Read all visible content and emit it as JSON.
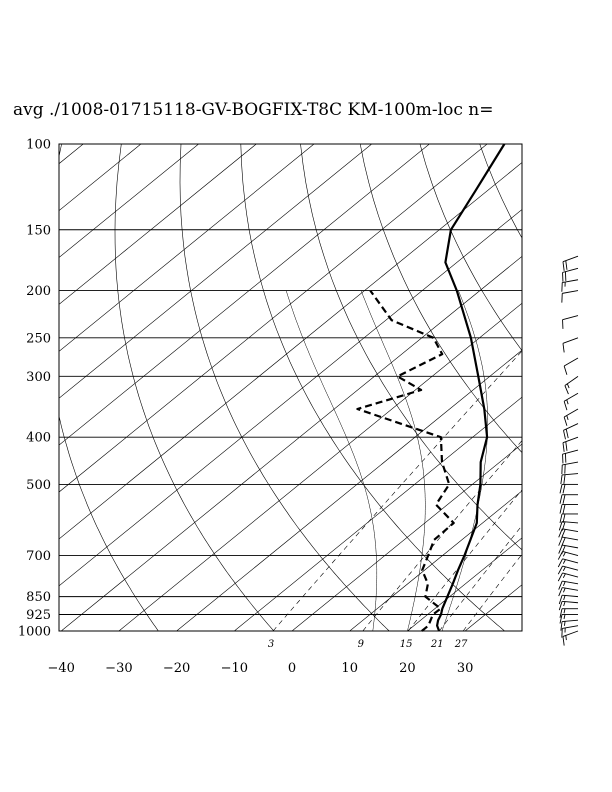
{
  "chart_data": {
    "type": "line",
    "subtype": "skew-T log-P sounding",
    "title": "avg ./1008-01715118-GV-BOGFIX-T8C KM-100m-loc n=",
    "xlabel": "",
    "ylabel": "",
    "y_scale": "log",
    "y_reversed": true,
    "xlim": [
      -40,
      40
    ],
    "ylim": [
      1000,
      100
    ],
    "pressure_levels": [
      100,
      150,
      200,
      250,
      300,
      400,
      500,
      700,
      850,
      925,
      1000
    ],
    "pressure_labels": [
      "100",
      "150",
      "200",
      "250",
      "300",
      "400",
      "500",
      "700",
      "850",
      "925",
      "1000"
    ],
    "temperature_ticks": [
      -40,
      -30,
      -20,
      -10,
      0,
      10,
      20,
      30
    ],
    "temperature_tick_labels": [
      "−40",
      "−30",
      "−20",
      "−10",
      "0",
      "10",
      "20",
      "30"
    ],
    "mixing_ratio_labels": [
      {
        "text": "3",
        "value": 3
      },
      {
        "text": "9",
        "value": 9
      },
      {
        "text": "15",
        "value": 15
      },
      {
        "text": "21",
        "value": 21
      },
      {
        "text": "27",
        "value": 27
      }
    ],
    "series": [
      {
        "style": "solid",
        "points": [
          [
            1000,
            25.5
          ],
          [
            975,
            24.0
          ],
          [
            950,
            23.0
          ],
          [
            925,
            22.3
          ],
          [
            900,
            21.3
          ],
          [
            850,
            19.6
          ],
          [
            800,
            17.8
          ],
          [
            750,
            15.8
          ],
          [
            700,
            13.8
          ],
          [
            650,
            11.5
          ],
          [
            600,
            9.0
          ],
          [
            550,
            5.2
          ],
          [
            500,
            1.4
          ],
          [
            450,
            -3.3
          ],
          [
            400,
            -7.5
          ],
          [
            350,
            -14.0
          ],
          [
            300,
            -22.0
          ],
          [
            250,
            -31.5
          ],
          [
            200,
            -44.0
          ],
          [
            175,
            -52.0
          ],
          [
            150,
            -58.0
          ],
          [
            125,
            -62.0
          ],
          [
            100,
            -67.0
          ]
        ]
      },
      {
        "style": "dashed",
        "points": [
          [
            1000,
            22.5
          ],
          [
            975,
            22.5
          ],
          [
            950,
            21.7
          ],
          [
            925,
            20.9
          ],
          [
            900,
            21.0
          ],
          [
            850,
            15.8
          ],
          [
            800,
            13.5
          ],
          [
            750,
            9.6
          ],
          [
            700,
            7.5
          ],
          [
            650,
            5.2
          ],
          [
            600,
            5.0
          ],
          [
            550,
            -2.0
          ],
          [
            500,
            -4.0
          ],
          [
            450,
            -10.0
          ],
          [
            400,
            -15.5
          ],
          [
            350,
            -36.0
          ],
          [
            320,
            -29.0
          ],
          [
            300,
            -36.0
          ],
          [
            270,
            -33.0
          ],
          [
            250,
            -38.0
          ],
          [
            230,
            -49.0
          ],
          [
            200,
            -59.0
          ]
        ]
      }
    ],
    "wind_barbs": {
      "levels": [
        1000,
        975,
        950,
        925,
        900,
        875,
        850,
        825,
        800,
        775,
        750,
        725,
        700,
        675,
        650,
        625,
        600,
        575,
        550,
        525,
        500,
        475,
        450,
        425,
        400,
        375,
        350,
        325,
        300,
        275,
        250,
        225,
        200,
        190,
        180,
        170
      ],
      "direction_deg": [
        250,
        260,
        265,
        270,
        270,
        275,
        275,
        280,
        280,
        285,
        285,
        285,
        285,
        280,
        280,
        280,
        275,
        270,
        270,
        270,
        270,
        265,
        260,
        255,
        250,
        245,
        240,
        240,
        235,
        240,
        250,
        255,
        260,
        260,
        255,
        250
      ],
      "speed_kt": [
        15,
        15,
        15,
        15,
        15,
        15,
        15,
        15,
        15,
        15,
        15,
        15,
        15,
        20,
        20,
        20,
        20,
        20,
        20,
        20,
        20,
        20,
        20,
        20,
        20,
        20,
        15,
        15,
        15,
        10,
        10,
        10,
        10,
        15,
        20,
        20
      ]
    }
  }
}
